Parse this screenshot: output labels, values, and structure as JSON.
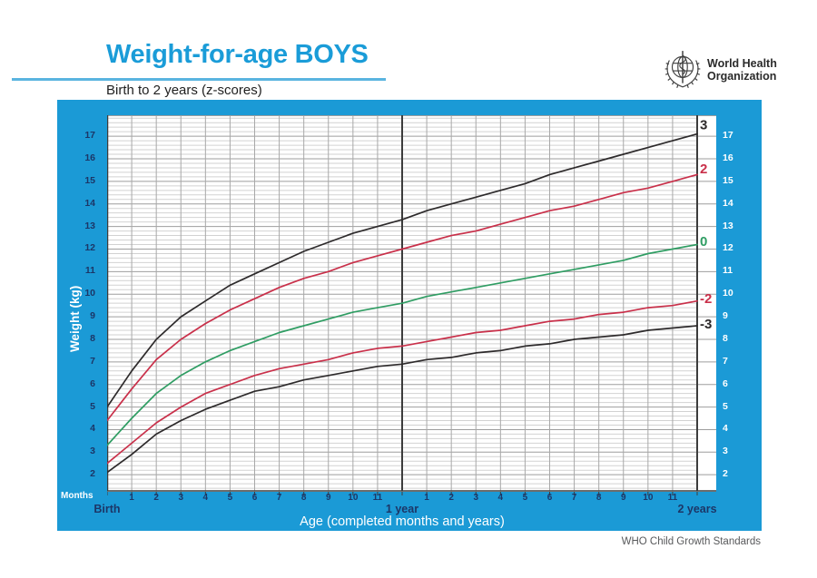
{
  "header": {
    "title": "Weight-for-age BOYS",
    "subtitle": "Birth to 2 years (z-scores)",
    "who_logo": {
      "line1": "World Health",
      "line2": "Organization"
    }
  },
  "footer": {
    "credit": "WHO Child Growth Standards"
  },
  "colors": {
    "accent_blue": "#1a9cd8",
    "panel_blue": "#1b9ad6",
    "navy_text": "#1c3667",
    "curve_black": "#2d2a2b",
    "curve_red": "#c9304a",
    "curve_green": "#2f9d63",
    "grid_minor": "#d2d2d2",
    "grid_major": "#9e9e9e",
    "grid_month": "#a8a8a8",
    "axis_dark": "#3c3c3c",
    "footer_gray": "#58595b"
  },
  "chart_data": {
    "type": "line",
    "title": "Weight-for-age BOYS, Birth to 2 years (z-scores)",
    "xlabel": "Age (completed months and years)",
    "ylabel": "Weight (kg)",
    "x_unit_label": "Months",
    "xlim_months": [
      0,
      24
    ],
    "ylim": [
      1.2,
      17.9
    ],
    "grid": {
      "minor_step_kg": 0.2,
      "major_step_kg": 1,
      "vertical_step_months": 1
    },
    "legend_position": "right-edge-curve-labels",
    "y_ticks": [
      2,
      3,
      4,
      5,
      6,
      7,
      8,
      9,
      10,
      11,
      12,
      13,
      14,
      15,
      16,
      17
    ],
    "x_major_ticks": [
      {
        "month": 0,
        "label": "Birth"
      },
      {
        "month": 12,
        "label": "1 year"
      },
      {
        "month": 24,
        "label": "2 years"
      }
    ],
    "x_month_labels": [
      "1",
      "2",
      "3",
      "4",
      "5",
      "6",
      "7",
      "8",
      "9",
      "10",
      "11"
    ],
    "months": [
      0,
      1,
      2,
      3,
      4,
      5,
      6,
      7,
      8,
      9,
      10,
      11,
      12,
      13,
      14,
      15,
      16,
      17,
      18,
      19,
      20,
      21,
      22,
      23,
      24
    ],
    "series": [
      {
        "name": "3",
        "zscore": "+3 SD",
        "color": "#2d2a2b",
        "values": [
          5.0,
          6.6,
          8.0,
          9.0,
          9.7,
          10.4,
          10.9,
          11.4,
          11.9,
          12.3,
          12.7,
          13.0,
          13.3,
          13.7,
          14.0,
          14.3,
          14.6,
          14.9,
          15.3,
          15.6,
          15.9,
          16.2,
          16.5,
          16.8,
          17.1
        ]
      },
      {
        "name": "2",
        "zscore": "+2 SD",
        "color": "#c9304a",
        "values": [
          4.4,
          5.8,
          7.1,
          8.0,
          8.7,
          9.3,
          9.8,
          10.3,
          10.7,
          11.0,
          11.4,
          11.7,
          12.0,
          12.3,
          12.6,
          12.8,
          13.1,
          13.4,
          13.7,
          13.9,
          14.2,
          14.5,
          14.7,
          15.0,
          15.3
        ]
      },
      {
        "name": "0",
        "zscore": "median",
        "color": "#2f9d63",
        "values": [
          3.3,
          4.5,
          5.6,
          6.4,
          7.0,
          7.5,
          7.9,
          8.3,
          8.6,
          8.9,
          9.2,
          9.4,
          9.6,
          9.9,
          10.1,
          10.3,
          10.5,
          10.7,
          10.9,
          11.1,
          11.3,
          11.5,
          11.8,
          12.0,
          12.2
        ]
      },
      {
        "name": "-2",
        "zscore": "-2 SD",
        "color": "#c9304a",
        "values": [
          2.5,
          3.4,
          4.3,
          5.0,
          5.6,
          6.0,
          6.4,
          6.7,
          6.9,
          7.1,
          7.4,
          7.6,
          7.7,
          7.9,
          8.1,
          8.3,
          8.4,
          8.6,
          8.8,
          8.9,
          9.1,
          9.2,
          9.4,
          9.5,
          9.7
        ]
      },
      {
        "name": "-3",
        "zscore": "-3 SD",
        "color": "#2d2a2b",
        "values": [
          2.1,
          2.9,
          3.8,
          4.4,
          4.9,
          5.3,
          5.7,
          5.9,
          6.2,
          6.4,
          6.6,
          6.8,
          6.9,
          7.1,
          7.2,
          7.4,
          7.5,
          7.7,
          7.8,
          8.0,
          8.1,
          8.2,
          8.4,
          8.5,
          8.6
        ]
      }
    ]
  }
}
